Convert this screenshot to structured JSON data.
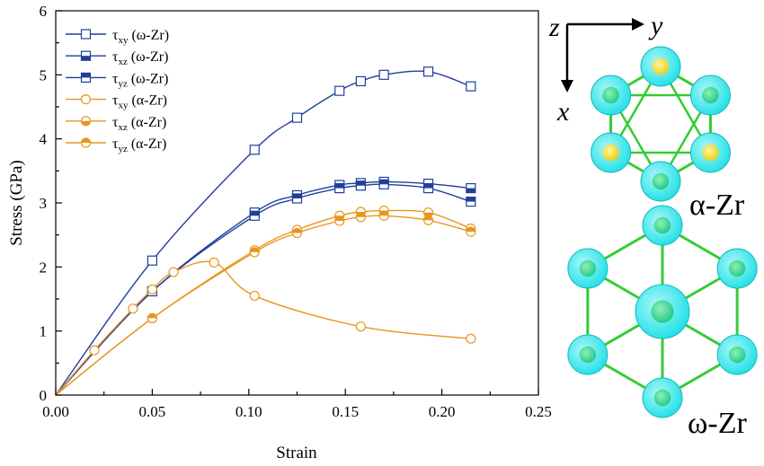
{
  "chart_data": {
    "type": "line",
    "title": "",
    "xlabel": "Strain",
    "ylabel": "Stress (GPa)",
    "xlim": [
      0,
      0.25
    ],
    "ylim": [
      0,
      6
    ],
    "xticks": [
      "0.00",
      "0.05",
      "0.10",
      "0.15",
      "0.20",
      "0.25"
    ],
    "yticks": [
      "0",
      "1",
      "2",
      "3",
      "4",
      "5",
      "6"
    ],
    "grid": false,
    "legend": "top-left",
    "series": [
      {
        "key": "w_xy",
        "sym": "τ",
        "sub": "xy",
        "phase": "(ω-Zr)",
        "color": "#1f3f9c",
        "marker": "square-open",
        "x": [
          0,
          0.05,
          0.103,
          0.125,
          0.147,
          0.158,
          0.17,
          0.193,
          0.215
        ],
        "y": [
          0,
          2.1,
          3.83,
          4.33,
          4.75,
          4.9,
          5.0,
          5.05,
          4.82
        ]
      },
      {
        "key": "w_xz",
        "sym": "τ",
        "sub": "xz",
        "phase": "(ω-Zr)",
        "color": "#1f3f9c",
        "marker": "square-bottom",
        "x": [
          0,
          0.05,
          0.103,
          0.125,
          0.147,
          0.158,
          0.17,
          0.193,
          0.215
        ],
        "y": [
          0,
          1.62,
          2.85,
          3.12,
          3.28,
          3.31,
          3.33,
          3.3,
          3.23
        ]
      },
      {
        "key": "w_yz",
        "sym": "τ",
        "sub": "yz",
        "phase": "(ω-Zr)",
        "color": "#1f3f9c",
        "marker": "square-top",
        "x": [
          0,
          0.05,
          0.103,
          0.125,
          0.147,
          0.158,
          0.17,
          0.193,
          0.215
        ],
        "y": [
          0,
          1.62,
          2.8,
          3.07,
          3.23,
          3.27,
          3.29,
          3.23,
          3.02
        ]
      },
      {
        "key": "a_xy",
        "sym": "τ",
        "sub": "xy",
        "phase": "(α-Zr)",
        "color": "#e8961e",
        "marker": "circle-open",
        "x": [
          0,
          0.02,
          0.04,
          0.05,
          0.061,
          0.082,
          0.103,
          0.158,
          0.215
        ],
        "y": [
          0,
          0.7,
          1.35,
          1.65,
          1.92,
          2.07,
          1.55,
          1.07,
          0.88
        ]
      },
      {
        "key": "a_xz",
        "sym": "τ",
        "sub": "xz",
        "phase": "(α-Zr)",
        "color": "#e8961e",
        "marker": "circle-bottom",
        "x": [
          0,
          0.05,
          0.103,
          0.125,
          0.147,
          0.158,
          0.17,
          0.193,
          0.215
        ],
        "y": [
          0,
          1.2,
          2.26,
          2.58,
          2.8,
          2.86,
          2.88,
          2.85,
          2.6
        ]
      },
      {
        "key": "a_yz",
        "sym": "τ",
        "sub": "yz",
        "phase": "(α-Zr)",
        "color": "#e8961e",
        "marker": "circle-top",
        "x": [
          0,
          0.05,
          0.103,
          0.125,
          0.147,
          0.158,
          0.17,
          0.193,
          0.215
        ],
        "y": [
          0,
          1.2,
          2.23,
          2.53,
          2.72,
          2.78,
          2.8,
          2.73,
          2.55
        ]
      }
    ]
  },
  "structures": {
    "axes": {
      "z": "z",
      "y": "y",
      "x": "x"
    },
    "alpha_label": "α-Zr",
    "omega_label": "ω-Zr",
    "colors": {
      "bond": "#33cc33",
      "cloud": "#21e0e6",
      "atom_green": "#22c987",
      "atom_yellow": "#e8d016"
    }
  }
}
